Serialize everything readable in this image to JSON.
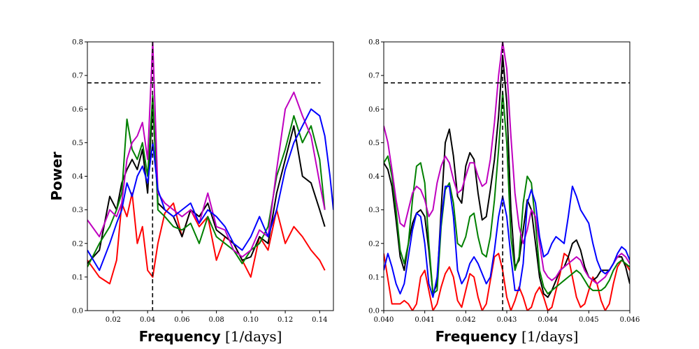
{
  "chart_data": [
    {
      "type": "line",
      "panel": "left",
      "xlabel_bold": "Frequency",
      "xlabel_unit": "[1/days]",
      "ylabel": "Power",
      "xlim": [
        0.005,
        0.148
      ],
      "ylim": [
        0,
        0.8
      ],
      "xticks": [
        "0.02",
        "0.04",
        "0.06",
        "0.08",
        "0.10",
        "0.12",
        "0.14"
      ],
      "yticks": [
        "0.0",
        "0.1",
        "0.2",
        "0.3",
        "0.4",
        "0.5",
        "0.6",
        "0.7",
        "0.8"
      ],
      "threshold": {
        "y": 0.678,
        "x_range": [
          0.005,
          0.1405
        ]
      },
      "marker_x": 0.0429,
      "series": [
        {
          "color": "#ff0000",
          "x": [
            0.005,
            0.012,
            0.018,
            0.022,
            0.025,
            0.028,
            0.031,
            0.034,
            0.037,
            0.04,
            0.043,
            0.046,
            0.05,
            0.055,
            0.06,
            0.065,
            0.07,
            0.075,
            0.08,
            0.085,
            0.09,
            0.095,
            0.1,
            0.105,
            0.11,
            0.115,
            0.12,
            0.125,
            0.13,
            0.135,
            0.14,
            0.143
          ],
          "values": [
            0.15,
            0.1,
            0.08,
            0.15,
            0.32,
            0.28,
            0.35,
            0.2,
            0.25,
            0.12,
            0.1,
            0.2,
            0.29,
            0.32,
            0.22,
            0.3,
            0.25,
            0.28,
            0.15,
            0.22,
            0.2,
            0.15,
            0.1,
            0.22,
            0.18,
            0.3,
            0.2,
            0.25,
            0.22,
            0.18,
            0.15,
            0.12
          ]
        },
        {
          "color": "#000000",
          "x": [
            0.005,
            0.012,
            0.018,
            0.022,
            0.025,
            0.028,
            0.031,
            0.034,
            0.037,
            0.04,
            0.043,
            0.046,
            0.05,
            0.055,
            0.06,
            0.065,
            0.07,
            0.075,
            0.08,
            0.085,
            0.09,
            0.095,
            0.1,
            0.105,
            0.11,
            0.115,
            0.12,
            0.125,
            0.13,
            0.135,
            0.14,
            0.143
          ],
          "values": [
            0.14,
            0.18,
            0.34,
            0.3,
            0.38,
            0.42,
            0.45,
            0.42,
            0.48,
            0.35,
            0.62,
            0.32,
            0.3,
            0.28,
            0.22,
            0.3,
            0.28,
            0.32,
            0.24,
            0.22,
            0.2,
            0.15,
            0.16,
            0.22,
            0.2,
            0.35,
            0.45,
            0.55,
            0.4,
            0.38,
            0.3,
            0.25
          ]
        },
        {
          "color": "#008000",
          "x": [
            0.005,
            0.012,
            0.018,
            0.022,
            0.025,
            0.028,
            0.031,
            0.034,
            0.037,
            0.04,
            0.043,
            0.046,
            0.05,
            0.055,
            0.06,
            0.065,
            0.07,
            0.075,
            0.08,
            0.085,
            0.09,
            0.095,
            0.1,
            0.105,
            0.11,
            0.115,
            0.12,
            0.125,
            0.13,
            0.135,
            0.14,
            0.143
          ],
          "values": [
            0.13,
            0.2,
            0.25,
            0.3,
            0.35,
            0.57,
            0.48,
            0.45,
            0.5,
            0.4,
            0.64,
            0.3,
            0.28,
            0.25,
            0.24,
            0.26,
            0.2,
            0.28,
            0.22,
            0.2,
            0.18,
            0.14,
            0.18,
            0.2,
            0.25,
            0.4,
            0.48,
            0.58,
            0.5,
            0.55,
            0.45,
            0.3
          ]
        },
        {
          "color": "#bf00bf",
          "x": [
            0.005,
            0.012,
            0.018,
            0.022,
            0.025,
            0.028,
            0.031,
            0.034,
            0.037,
            0.04,
            0.043,
            0.046,
            0.05,
            0.055,
            0.06,
            0.065,
            0.07,
            0.075,
            0.08,
            0.085,
            0.09,
            0.095,
            0.1,
            0.105,
            0.11,
            0.115,
            0.12,
            0.125,
            0.13,
            0.135,
            0.14,
            0.143
          ],
          "values": [
            0.27,
            0.22,
            0.3,
            0.28,
            0.32,
            0.45,
            0.5,
            0.52,
            0.56,
            0.45,
            0.8,
            0.35,
            0.32,
            0.3,
            0.28,
            0.3,
            0.26,
            0.35,
            0.25,
            0.24,
            0.18,
            0.16,
            0.18,
            0.24,
            0.22,
            0.42,
            0.6,
            0.65,
            0.58,
            0.52,
            0.38,
            0.3
          ]
        },
        {
          "color": "#0000ff",
          "x": [
            0.005,
            0.012,
            0.018,
            0.022,
            0.025,
            0.028,
            0.031,
            0.034,
            0.037,
            0.04,
            0.043,
            0.046,
            0.05,
            0.055,
            0.06,
            0.065,
            0.07,
            0.075,
            0.08,
            0.085,
            0.09,
            0.095,
            0.1,
            0.105,
            0.11,
            0.115,
            0.12,
            0.125,
            0.13,
            0.135,
            0.14,
            0.143,
            0.146,
            0.148
          ],
          "values": [
            0.18,
            0.12,
            0.2,
            0.26,
            0.3,
            0.38,
            0.34,
            0.4,
            0.43,
            0.38,
            0.5,
            0.36,
            0.3,
            0.28,
            0.3,
            0.32,
            0.26,
            0.3,
            0.28,
            0.25,
            0.2,
            0.18,
            0.22,
            0.28,
            0.22,
            0.3,
            0.42,
            0.5,
            0.55,
            0.6,
            0.58,
            0.52,
            0.4,
            0.3
          ]
        }
      ]
    },
    {
      "type": "line",
      "panel": "right",
      "xlabel_bold": "Frequency",
      "xlabel_unit": "[1/days]",
      "ylabel": "",
      "xlim": [
        0.04,
        0.046
      ],
      "ylim": [
        0,
        0.8
      ],
      "xticks": [
        "0.040",
        "0.041",
        "0.042",
        "0.043",
        "0.044",
        "0.045",
        "0.046"
      ],
      "yticks": [
        "0.0",
        "0.1",
        "0.2",
        "0.3",
        "0.4",
        "0.5",
        "0.6",
        "0.7",
        "0.8"
      ],
      "threshold": {
        "y": 0.678,
        "x_range": [
          0.04,
          0.046
        ]
      },
      "marker_x": 0.0429,
      "series": [
        {
          "color": "#ff0000",
          "x": [
            0.04,
            0.0402,
            0.0404,
            0.0405,
            0.0406,
            0.0407,
            0.0408,
            0.0409,
            0.041,
            0.0411,
            0.0412,
            0.0413,
            0.0414,
            0.0415,
            0.0416,
            0.0417,
            0.0418,
            0.0419,
            0.042,
            0.0421,
            0.0422,
            0.0423,
            0.0424,
            0.0425,
            0.0426,
            0.0427,
            0.0428,
            0.0429,
            0.043,
            0.0431,
            0.0432,
            0.0433,
            0.0434,
            0.0435,
            0.0436,
            0.0437,
            0.0438,
            0.0439,
            0.044,
            0.0441,
            0.0442,
            0.0443,
            0.0444,
            0.0445,
            0.0446,
            0.0447,
            0.0448,
            0.0449,
            0.045,
            0.0451,
            0.0452,
            0.0453,
            0.0454,
            0.0455,
            0.0456,
            0.0457,
            0.0458,
            0.0459,
            0.046
          ],
          "values": [
            0.17,
            0.02,
            0.02,
            0.03,
            0.02,
            0.0,
            0.02,
            0.1,
            0.12,
            0.06,
            0.0,
            0.02,
            0.07,
            0.11,
            0.13,
            0.1,
            0.03,
            0.01,
            0.06,
            0.11,
            0.1,
            0.04,
            0.0,
            0.02,
            0.09,
            0.16,
            0.17,
            0.12,
            0.04,
            0.0,
            0.03,
            0.07,
            0.04,
            0.0,
            0.01,
            0.05,
            0.07,
            0.04,
            0.0,
            0.01,
            0.06,
            0.11,
            0.17,
            0.16,
            0.1,
            0.04,
            0.01,
            0.02,
            0.06,
            0.1,
            0.08,
            0.03,
            0.0,
            0.02,
            0.08,
            0.13,
            0.15,
            0.14,
            0.12
          ]
        },
        {
          "color": "#000000",
          "x": [
            0.04,
            0.0401,
            0.0402,
            0.0403,
            0.0404,
            0.0405,
            0.0406,
            0.0407,
            0.0408,
            0.0409,
            0.041,
            0.0411,
            0.0412,
            0.0413,
            0.0414,
            0.0415,
            0.0416,
            0.0417,
            0.0418,
            0.0419,
            0.042,
            0.0421,
            0.0422,
            0.0423,
            0.0424,
            0.0425,
            0.0426,
            0.0427,
            0.0428,
            0.0429,
            0.043,
            0.0431,
            0.0432,
            0.0433,
            0.0434,
            0.0435,
            0.0436,
            0.0437,
            0.0438,
            0.0439,
            0.044,
            0.0441,
            0.0442,
            0.0443,
            0.0444,
            0.0445,
            0.0446,
            0.0447,
            0.0448,
            0.0449,
            0.045,
            0.0451,
            0.0452,
            0.0453,
            0.0454,
            0.0455,
            0.0456,
            0.0457,
            0.0458,
            0.0459,
            0.046
          ],
          "values": [
            0.44,
            0.42,
            0.37,
            0.27,
            0.16,
            0.12,
            0.2,
            0.26,
            0.29,
            0.3,
            0.28,
            0.18,
            0.05,
            0.08,
            0.3,
            0.5,
            0.54,
            0.46,
            0.34,
            0.32,
            0.43,
            0.47,
            0.45,
            0.35,
            0.27,
            0.28,
            0.36,
            0.45,
            0.58,
            0.76,
            0.62,
            0.3,
            0.13,
            0.15,
            0.24,
            0.33,
            0.3,
            0.2,
            0.1,
            0.05,
            0.04,
            0.06,
            0.09,
            0.12,
            0.13,
            0.16,
            0.2,
            0.21,
            0.18,
            0.13,
            0.1,
            0.09,
            0.1,
            0.12,
            0.12,
            0.12,
            0.14,
            0.16,
            0.16,
            0.13,
            0.08
          ]
        },
        {
          "color": "#008000",
          "x": [
            0.04,
            0.0401,
            0.0402,
            0.0403,
            0.0404,
            0.0405,
            0.0406,
            0.0407,
            0.0408,
            0.0409,
            0.041,
            0.0411,
            0.0412,
            0.0413,
            0.0414,
            0.0415,
            0.0416,
            0.0417,
            0.0418,
            0.0419,
            0.042,
            0.0421,
            0.0422,
            0.0423,
            0.0424,
            0.0425,
            0.0426,
            0.0427,
            0.0428,
            0.0429,
            0.043,
            0.0431,
            0.0432,
            0.0433,
            0.0434,
            0.0435,
            0.0436,
            0.0437,
            0.0438,
            0.0439,
            0.044,
            0.0441,
            0.0442,
            0.0443,
            0.0444,
            0.0445,
            0.0446,
            0.0447,
            0.0448,
            0.0449,
            0.045,
            0.0451,
            0.0452,
            0.0453,
            0.0454,
            0.0455,
            0.0456,
            0.0457,
            0.0458,
            0.0459,
            0.046
          ],
          "values": [
            0.44,
            0.46,
            0.4,
            0.3,
            0.18,
            0.14,
            0.2,
            0.33,
            0.43,
            0.44,
            0.38,
            0.2,
            0.05,
            0.06,
            0.25,
            0.36,
            0.38,
            0.32,
            0.2,
            0.19,
            0.22,
            0.28,
            0.29,
            0.22,
            0.17,
            0.16,
            0.22,
            0.33,
            0.48,
            0.65,
            0.5,
            0.22,
            0.12,
            0.16,
            0.32,
            0.4,
            0.38,
            0.26,
            0.12,
            0.07,
            0.05,
            0.06,
            0.07,
            0.08,
            0.09,
            0.1,
            0.11,
            0.12,
            0.11,
            0.09,
            0.07,
            0.06,
            0.06,
            0.06,
            0.07,
            0.09,
            0.12,
            0.14,
            0.15,
            0.14,
            0.13
          ]
        },
        {
          "color": "#bf00bf",
          "x": [
            0.04,
            0.0401,
            0.0402,
            0.0403,
            0.0404,
            0.0405,
            0.0406,
            0.0407,
            0.0408,
            0.0409,
            0.041,
            0.0411,
            0.0412,
            0.0413,
            0.0414,
            0.0415,
            0.0416,
            0.0417,
            0.0418,
            0.0419,
            0.042,
            0.0421,
            0.0422,
            0.0423,
            0.0424,
            0.0425,
            0.0426,
            0.0427,
            0.0428,
            0.0429,
            0.043,
            0.0431,
            0.0432,
            0.0433,
            0.0434,
            0.0435,
            0.0436,
            0.0437,
            0.0438,
            0.0439,
            0.044,
            0.0441,
            0.0442,
            0.0443,
            0.0444,
            0.0445,
            0.0446,
            0.0447,
            0.0448,
            0.0449,
            0.045,
            0.0451,
            0.0452,
            0.0453,
            0.0454,
            0.0455,
            0.0456,
            0.0457,
            0.0458,
            0.0459,
            0.046
          ],
          "values": [
            0.55,
            0.5,
            0.42,
            0.33,
            0.26,
            0.25,
            0.3,
            0.35,
            0.37,
            0.36,
            0.33,
            0.28,
            0.3,
            0.38,
            0.43,
            0.46,
            0.44,
            0.39,
            0.35,
            0.36,
            0.4,
            0.44,
            0.44,
            0.4,
            0.37,
            0.38,
            0.45,
            0.56,
            0.7,
            0.8,
            0.72,
            0.52,
            0.35,
            0.25,
            0.2,
            0.24,
            0.3,
            0.28,
            0.2,
            0.12,
            0.1,
            0.09,
            0.1,
            0.12,
            0.13,
            0.14,
            0.15,
            0.16,
            0.15,
            0.12,
            0.1,
            0.09,
            0.08,
            0.09,
            0.1,
            0.12,
            0.14,
            0.16,
            0.17,
            0.16,
            0.14
          ]
        },
        {
          "color": "#0000ff",
          "x": [
            0.04,
            0.0401,
            0.0402,
            0.0403,
            0.0404,
            0.0405,
            0.0406,
            0.0407,
            0.0408,
            0.0409,
            0.041,
            0.0411,
            0.0412,
            0.0413,
            0.0414,
            0.0415,
            0.0416,
            0.0417,
            0.0418,
            0.0419,
            0.042,
            0.0421,
            0.0422,
            0.0423,
            0.0424,
            0.0425,
            0.0426,
            0.0427,
            0.0428,
            0.0429,
            0.043,
            0.0431,
            0.0432,
            0.0433,
            0.0434,
            0.0435,
            0.0436,
            0.0437,
            0.0438,
            0.0439,
            0.044,
            0.0441,
            0.0442,
            0.0443,
            0.0444,
            0.0445,
            0.0446,
            0.0447,
            0.0448,
            0.0449,
            0.045,
            0.0451,
            0.0452,
            0.0453,
            0.0454,
            0.0455,
            0.0456,
            0.0457,
            0.0458,
            0.0459,
            0.046
          ],
          "values": [
            0.12,
            0.17,
            0.13,
            0.08,
            0.05,
            0.08,
            0.16,
            0.24,
            0.29,
            0.28,
            0.2,
            0.08,
            0.04,
            0.1,
            0.27,
            0.37,
            0.37,
            0.28,
            0.12,
            0.08,
            0.1,
            0.14,
            0.16,
            0.14,
            0.11,
            0.08,
            0.1,
            0.18,
            0.28,
            0.34,
            0.28,
            0.16,
            0.06,
            0.06,
            0.14,
            0.32,
            0.36,
            0.32,
            0.22,
            0.16,
            0.17,
            0.2,
            0.22,
            0.21,
            0.2,
            0.28,
            0.37,
            0.34,
            0.3,
            0.28,
            0.26,
            0.2,
            0.15,
            0.12,
            0.11,
            0.12,
            0.14,
            0.17,
            0.19,
            0.18,
            0.15
          ]
        }
      ]
    }
  ]
}
